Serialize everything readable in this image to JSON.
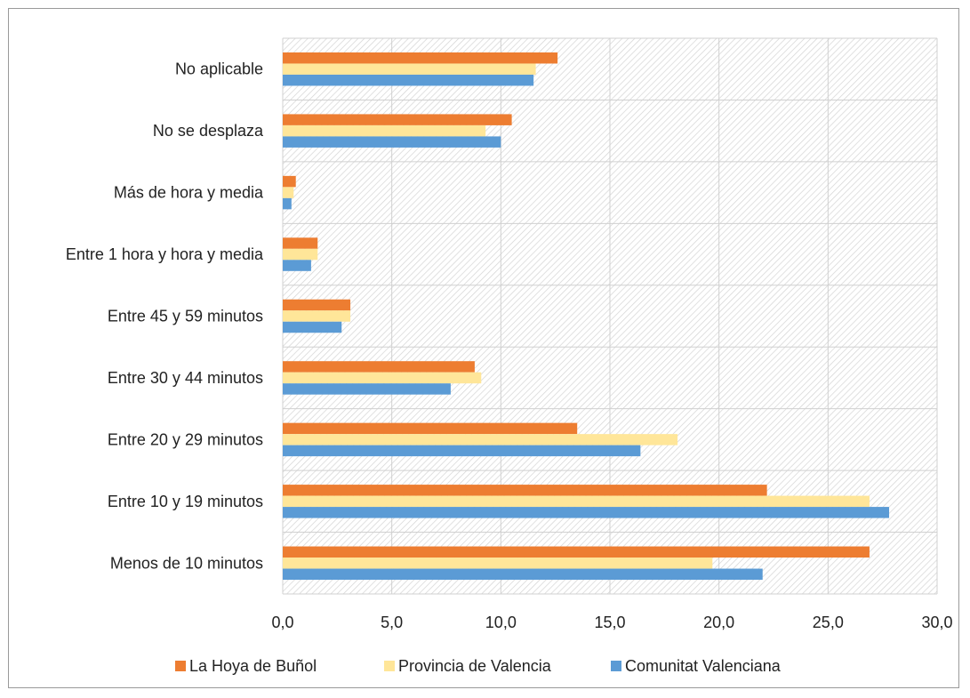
{
  "chart_data": {
    "type": "bar",
    "orientation": "horizontal",
    "categories": [
      "Menos de 10 minutos",
      "Entre 10 y 19 minutos",
      "Entre 20 y 29 minutos",
      "Entre 30 y 44 minutos",
      "Entre 45 y 59 minutos",
      "Entre 1 hora y hora y media",
      "Más de hora y media",
      "No se desplaza",
      "No aplicable"
    ],
    "series": [
      {
        "name": "La Hoya de Buñol",
        "color": "#ED7D31",
        "values": [
          26.9,
          22.2,
          13.5,
          8.8,
          3.1,
          1.6,
          0.6,
          10.5,
          12.6
        ]
      },
      {
        "name": "Provincia de Valencia",
        "color": "#FFE699",
        "values": [
          19.7,
          26.9,
          18.1,
          9.1,
          3.1,
          1.6,
          0.5,
          9.3,
          11.6
        ]
      },
      {
        "name": "Comunitat Valenciana",
        "color": "#5B9BD5",
        "values": [
          22.0,
          27.8,
          16.4,
          7.7,
          2.7,
          1.3,
          0.4,
          10.0,
          11.5
        ]
      }
    ],
    "xlim": [
      0,
      30
    ],
    "xticks": [
      "0,0",
      "5,0",
      "10,0",
      "15,0",
      "20,0",
      "25,0",
      "30,0"
    ],
    "grid": true,
    "plot_background": "hatched",
    "legend_position": "bottom",
    "title": "",
    "xlabel": "",
    "ylabel": ""
  }
}
